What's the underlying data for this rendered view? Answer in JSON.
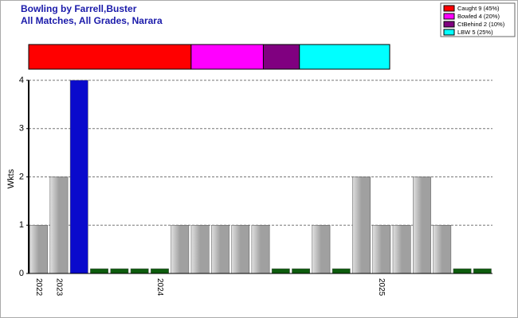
{
  "chart_data": {
    "type": "bar",
    "title": "Bowling by Farrell,Buster",
    "subtitle": "All Matches, All Grades, Narara",
    "y_label": "Wkts",
    "categories": [
      "2022",
      "2023",
      null,
      null,
      null,
      null,
      "2024",
      null,
      null,
      null,
      null,
      null,
      null,
      null,
      null,
      null,
      null,
      "2025",
      null,
      null,
      null,
      null,
      null
    ],
    "values": [
      1,
      2,
      4,
      0,
      0,
      0,
      0,
      1,
      1,
      1,
      1,
      1,
      0,
      0,
      1,
      0,
      2,
      1,
      1,
      2,
      1,
      0,
      0
    ],
    "colors": [
      "#a0a0a0",
      "#a0a0a0",
      "#0a0acc",
      "#0d5c0d",
      "#0d5c0d",
      "#0d5c0d",
      "#0d5c0d",
      "#a0a0a0",
      "#a0a0a0",
      "#a0a0a0",
      "#a0a0a0",
      "#a0a0a0",
      "#0d5c0d",
      "#0d5c0d",
      "#a0a0a0",
      "#0d5c0d",
      "#a0a0a0",
      "#a0a0a0",
      "#a0a0a0",
      "#a0a0a0",
      "#a0a0a0",
      "#0d5c0d",
      "#0d5c0d"
    ],
    "ylim": [
      0,
      4
    ],
    "yticks": [
      0,
      1,
      2,
      3,
      4
    ],
    "grid": true,
    "breakdown": {
      "labels": [
        "Caught 9 (45%)",
        "Bowled 4 (20%)",
        "CtBehind 2 (10%)",
        "LBW 5 (25%)"
      ],
      "values": [
        9,
        4,
        2,
        5
      ],
      "colors": [
        "#ff0000",
        "#ff00ff",
        "#800080",
        "#00ffff"
      ]
    }
  }
}
